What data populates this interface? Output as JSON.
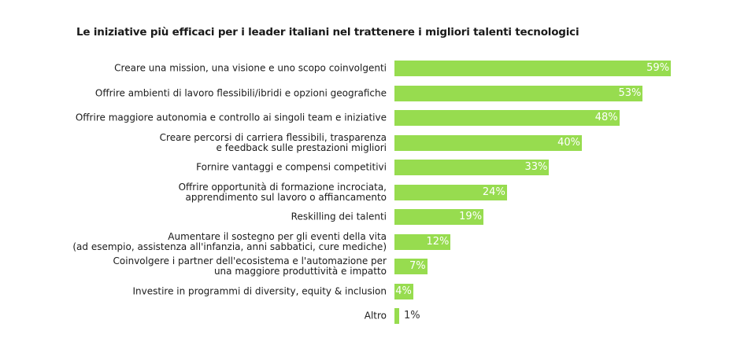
{
  "chart_data": {
    "type": "bar",
    "orientation": "horizontal",
    "title": "Le iniziative più efficaci per i leader italiani nel trattenere i migliori talenti tecnologici",
    "xlabel": "",
    "ylabel": "",
    "unit": "%",
    "xlim": [
      0,
      100
    ],
    "grid": false,
    "bar_color": "#97dc4f",
    "categories": [
      "Creare una mission, una visione e uno scopo coinvolgenti",
      "Offrire ambienti di lavoro flessibili/ibridi e opzioni geografiche",
      "Offrire maggiore autonomia e controllo ai singoli team e iniziative",
      "Creare percorsi di carriera flessibili, trasparenza\ne feedback sulle prestazioni migliori",
      "Fornire vantaggi e compensi competitivi",
      "Offrire opportunità di formazione incrociata,\napprendimento sul lavoro o affiancamento",
      "Reskilling dei talenti",
      "Aumentare il sostegno per gli eventi della vita\n(ad esempio, assistenza all'infanzia, anni sabbatici, cure mediche)",
      "Coinvolgere i partner dell'ecosistema e l'automazione per\nuna maggiore produttività e impatto",
      "Investire in programmi di diversity, equity & inclusion",
      "Altro"
    ],
    "values": [
      59,
      53,
      48,
      40,
      33,
      24,
      19,
      12,
      7,
      4,
      1
    ],
    "value_labels": [
      "59%",
      "53%",
      "48%",
      "40%",
      "33%",
      "24%",
      "19%",
      "12%",
      "7%",
      "4%",
      "1%"
    ]
  }
}
